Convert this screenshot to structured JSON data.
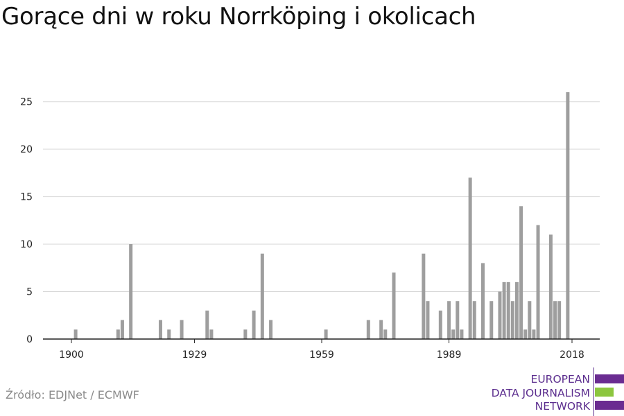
{
  "title": "Gorące dni w roku Norrköping i okolicach",
  "source": "Źródło: EDJNet / ECMWF",
  "logo": {
    "lines": [
      "EUROPEAN",
      "DATA JOURNALISM",
      "NETWORK"
    ],
    "colors": {
      "text": "#5b2d8e",
      "bar": "#6a2c91",
      "accent": "#8cc63f"
    }
  },
  "colors": {
    "bar": "#9e9e9e",
    "grid": "#d9d9d9",
    "axis": "#222222"
  },
  "chart_data": {
    "type": "bar",
    "title": "Gorące dni w roku Norrköping i okolicach",
    "xlabel": "",
    "ylabel": "",
    "xlim": [
      1900,
      2018
    ],
    "ylim": [
      0,
      26
    ],
    "xticks": [
      1900,
      1929,
      1959,
      1989,
      2018
    ],
    "yticks": [
      0,
      5,
      10,
      15,
      20,
      25
    ],
    "grid": true,
    "legend": "none",
    "x": [
      1901,
      1911,
      1912,
      1914,
      1921,
      1923,
      1926,
      1932,
      1933,
      1941,
      1943,
      1945,
      1947,
      1960,
      1970,
      1973,
      1974,
      1976,
      1983,
      1984,
      1987,
      1989,
      1990,
      1991,
      1992,
      1994,
      1995,
      1997,
      1999,
      2001,
      2002,
      2003,
      2004,
      2005,
      2006,
      2007,
      2008,
      2009,
      2010,
      2011,
      2013,
      2014,
      2015,
      2017
    ],
    "values": [
      1,
      1,
      2,
      10,
      2,
      1,
      2,
      3,
      1,
      1,
      3,
      9,
      2,
      1,
      2,
      2,
      1,
      7,
      9,
      4,
      3,
      4,
      1,
      4,
      1,
      17,
      4,
      8,
      4,
      5,
      6,
      6,
      4,
      6,
      14,
      1,
      4,
      1,
      12,
      0,
      11,
      4,
      4,
      26
    ]
  }
}
